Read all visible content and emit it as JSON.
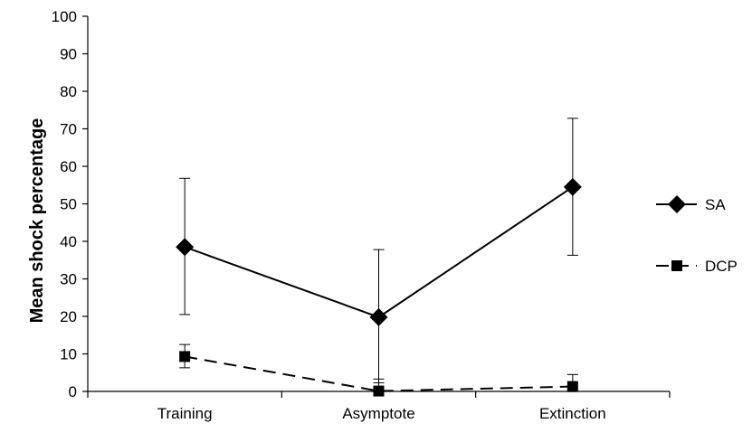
{
  "chart_data": {
    "type": "line",
    "title": "",
    "xlabel": "",
    "ylabel": "Mean shock percentage",
    "categories": [
      "Training",
      "Asymptote",
      "Extinction"
    ],
    "ylim": [
      0,
      100
    ],
    "yticks": [
      0,
      10,
      20,
      30,
      40,
      50,
      60,
      70,
      80,
      90,
      100
    ],
    "grid": false,
    "legend_position": "right",
    "series": [
      {
        "name": "SA",
        "marker": "diamond",
        "line_style": "solid",
        "color": "#000000",
        "values": [
          38.5,
          19.8,
          54.5
        ],
        "error_upper": [
          56.8,
          37.8,
          72.8
        ],
        "error_lower": [
          20.5,
          2.3,
          36.3
        ]
      },
      {
        "name": "DCP",
        "marker": "square",
        "line_style": "dashed",
        "color": "#000000",
        "values": [
          9.3,
          0.1,
          1.3
        ],
        "error_upper": [
          12.5,
          3.3,
          4.5
        ],
        "error_lower": [
          6.3,
          0,
          0
        ]
      }
    ]
  }
}
